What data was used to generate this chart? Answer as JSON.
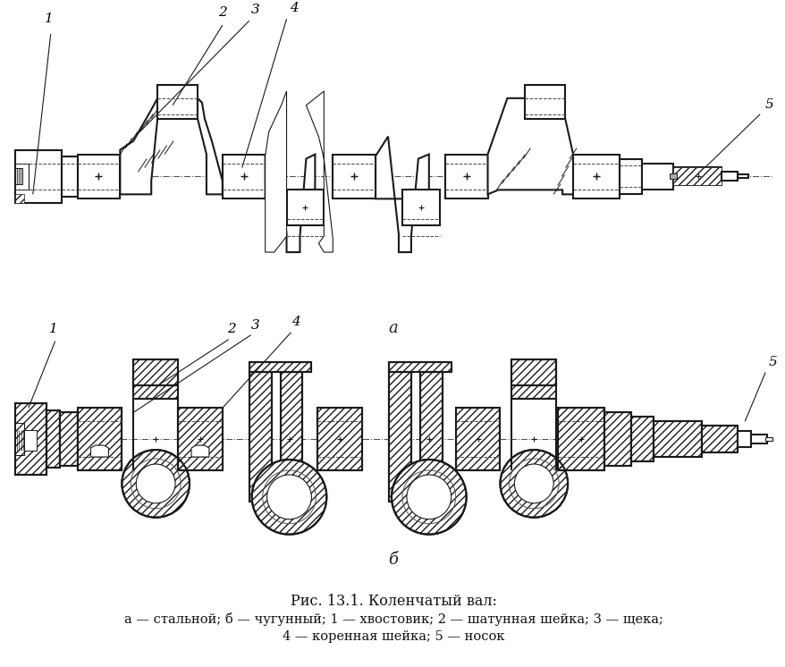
{
  "title_line1": "Рис. 13.1. Коленчатый вал:",
  "title_line2": "а — стальной; б — чугунный; 1 — хвостовик; 2 — шатунная шейка; 3 — щека;",
  "title_line3": "4 — коренная шейка; 5 — носок",
  "label_a": "а",
  "label_b": "б",
  "bg_color": "#ffffff",
  "line_color": "#1a1a1a",
  "fig_width": 8.79,
  "fig_height": 7.46,
  "dpi": 100
}
